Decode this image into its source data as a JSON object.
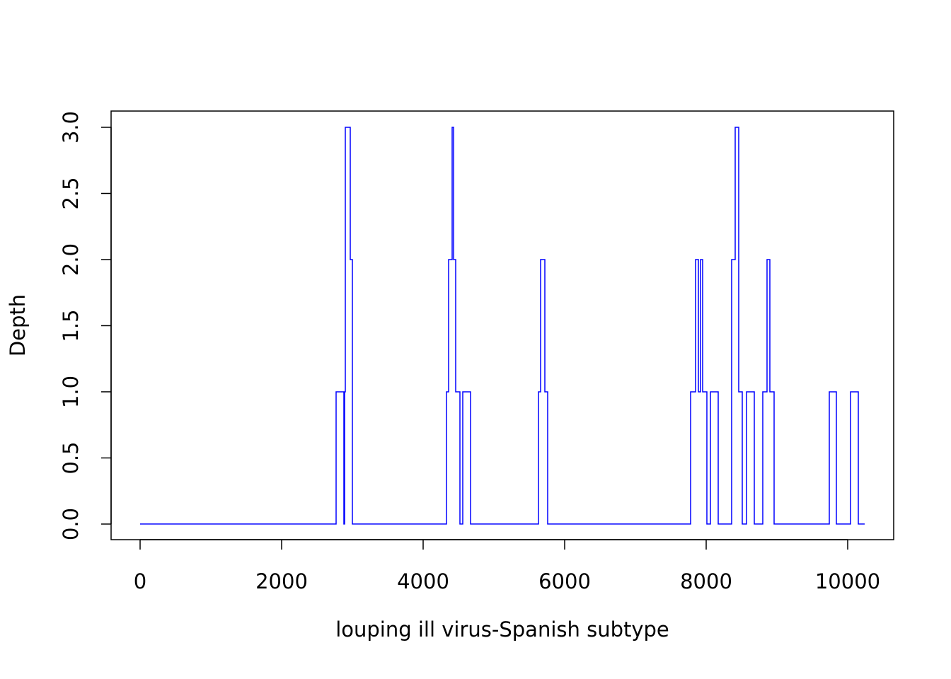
{
  "chart_data": {
    "type": "line",
    "drawstyle": "steps-post",
    "xlabel": "louping ill virus-Spanish subtype",
    "ylabel": "Depth",
    "x": [
      0,
      2770,
      2880,
      2890,
      2900,
      2970,
      3000,
      4330,
      4360,
      4410,
      4430,
      4460,
      4520,
      4560,
      4670,
      5630,
      5660,
      5720,
      5760,
      7780,
      7850,
      7890,
      7920,
      7950,
      8010,
      8060,
      8170,
      8360,
      8410,
      8460,
      8510,
      8570,
      8680,
      8800,
      8860,
      8900,
      8960,
      9740,
      9840,
      10040,
      10150,
      10240
    ],
    "values": [
      0,
      1,
      0,
      1,
      3,
      2,
      0,
      1,
      2,
      3,
      2,
      1,
      0,
      1,
      0,
      1,
      2,
      1,
      0,
      1,
      2,
      1,
      2,
      1,
      0,
      1,
      0,
      2,
      3,
      1,
      0,
      1,
      0,
      1,
      2,
      1,
      0,
      1,
      0,
      1,
      0,
      0
    ],
    "color": "#0000ff",
    "xlim": [
      -410,
      10650
    ],
    "ylim": [
      -0.118,
      3.123
    ],
    "xticks": [
      0,
      2000,
      4000,
      6000,
      8000,
      10000
    ],
    "yticks": [
      {
        "value": 0,
        "label": "0.0"
      },
      {
        "value": 0.5,
        "label": "0.5"
      },
      {
        "value": 1,
        "label": "1.0"
      },
      {
        "value": 1.5,
        "label": "1.5"
      },
      {
        "value": 2,
        "label": "2.0"
      },
      {
        "value": 2.5,
        "label": "2.5"
      },
      {
        "value": 3,
        "label": "3.0"
      }
    ]
  }
}
